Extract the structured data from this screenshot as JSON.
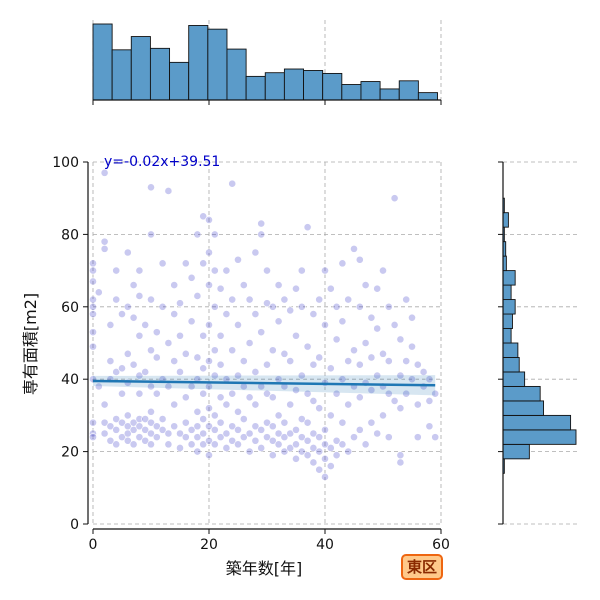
{
  "badge": {
    "label": "東区"
  },
  "chart_data": {
    "type": "scatter",
    "title": "",
    "xlabel": "築年数[年]",
    "ylabel": "専有面積[m2]",
    "xlim": [
      0,
      60
    ],
    "ylim": [
      0,
      100
    ],
    "xticks": [
      0,
      20,
      40,
      60
    ],
    "yticks": [
      0,
      20,
      40,
      60,
      80,
      100
    ],
    "grid": true,
    "point_color": "#3c3cc8",
    "bar_color": "#5b9bc9",
    "line_color": "#1f77b4",
    "regression": {
      "label": "y=-0.02x+39.51",
      "slope": -0.02,
      "intercept": 39.51,
      "x_range": [
        0,
        59
      ]
    },
    "marginal_x_hist": {
      "bin_edges": [
        0,
        3.3,
        6.6,
        9.9,
        13.2,
        16.5,
        19.8,
        23.1,
        26.4,
        29.7,
        33,
        36.3,
        39.6,
        42.9,
        46.2,
        49.5,
        52.8,
        56.1,
        59.4
      ],
      "counts": [
        103,
        68,
        86,
        70,
        51,
        101,
        96,
        69,
        32,
        37,
        42,
        40,
        36,
        21,
        25,
        15,
        26,
        10
      ]
    },
    "marginal_y_hist": {
      "bin_edges": [
        14,
        18,
        22,
        26,
        30,
        34,
        38,
        42,
        46,
        50,
        54,
        58,
        62,
        66,
        70,
        74,
        78,
        82,
        86,
        90
      ],
      "counts": [
        2,
        39,
        108,
        100,
        60,
        55,
        32,
        24,
        22,
        12,
        14,
        18,
        12,
        18,
        5,
        4,
        2,
        8,
        2
      ]
    },
    "points": [
      [
        0,
        25
      ],
      [
        0,
        28
      ],
      [
        0,
        40
      ],
      [
        0,
        49
      ],
      [
        0,
        53
      ],
      [
        0,
        58
      ],
      [
        0,
        60
      ],
      [
        0,
        62
      ],
      [
        0,
        67
      ],
      [
        0,
        70
      ],
      [
        0,
        72
      ],
      [
        0,
        24
      ],
      [
        1,
        38
      ],
      [
        1,
        64
      ],
      [
        2,
        76
      ],
      [
        2,
        78
      ],
      [
        2,
        97
      ],
      [
        2,
        28
      ],
      [
        2,
        25
      ],
      [
        2,
        33
      ],
      [
        3,
        23
      ],
      [
        3,
        27
      ],
      [
        3,
        40
      ],
      [
        3,
        55
      ],
      [
        3,
        45
      ],
      [
        4,
        22
      ],
      [
        4,
        26
      ],
      [
        4,
        29
      ],
      [
        4,
        42
      ],
      [
        4,
        62
      ],
      [
        4,
        70
      ],
      [
        5,
        24
      ],
      [
        5,
        28
      ],
      [
        5,
        36
      ],
      [
        5,
        43
      ],
      [
        5,
        58
      ],
      [
        6,
        23
      ],
      [
        6,
        25
      ],
      [
        6,
        27
      ],
      [
        6,
        30
      ],
      [
        6,
        39
      ],
      [
        6,
        47
      ],
      [
        6,
        60
      ],
      [
        6,
        75
      ],
      [
        7,
        22
      ],
      [
        7,
        26
      ],
      [
        7,
        28
      ],
      [
        7,
        44
      ],
      [
        7,
        57
      ],
      [
        7,
        66
      ],
      [
        8,
        24
      ],
      [
        8,
        27
      ],
      [
        8,
        29
      ],
      [
        8,
        36
      ],
      [
        8,
        41
      ],
      [
        8,
        52
      ],
      [
        8,
        63
      ],
      [
        8,
        70
      ],
      [
        9,
        23
      ],
      [
        9,
        26
      ],
      [
        9,
        29
      ],
      [
        9,
        42
      ],
      [
        9,
        55
      ],
      [
        10,
        22
      ],
      [
        10,
        25
      ],
      [
        10,
        28
      ],
      [
        10,
        31
      ],
      [
        10,
        38
      ],
      [
        10,
        48
      ],
      [
        10,
        62
      ],
      [
        10,
        80
      ],
      [
        10,
        93
      ],
      [
        11,
        24
      ],
      [
        11,
        27
      ],
      [
        11,
        36
      ],
      [
        11,
        46
      ],
      [
        11,
        53
      ],
      [
        12,
        26
      ],
      [
        12,
        29
      ],
      [
        12,
        40
      ],
      [
        12,
        60
      ],
      [
        12,
        72
      ],
      [
        13,
        22
      ],
      [
        13,
        25
      ],
      [
        13,
        38
      ],
      [
        13,
        50
      ],
      [
        13,
        92
      ],
      [
        14,
        27
      ],
      [
        14,
        33
      ],
      [
        14,
        45
      ],
      [
        14,
        58
      ],
      [
        14,
        66
      ],
      [
        15,
        21
      ],
      [
        15,
        25
      ],
      [
        15,
        42
      ],
      [
        15,
        52
      ],
      [
        15,
        61
      ],
      [
        16,
        24
      ],
      [
        16,
        28
      ],
      [
        16,
        35
      ],
      [
        16,
        47
      ],
      [
        16,
        72
      ],
      [
        17,
        22
      ],
      [
        17,
        26
      ],
      [
        17,
        38
      ],
      [
        17,
        56
      ],
      [
        17,
        68
      ],
      [
        18,
        20
      ],
      [
        18,
        24
      ],
      [
        18,
        27
      ],
      [
        18,
        31
      ],
      [
        18,
        40
      ],
      [
        18,
        46
      ],
      [
        18,
        63
      ],
      [
        18,
        80
      ],
      [
        19,
        22
      ],
      [
        19,
        25
      ],
      [
        19,
        29
      ],
      [
        19,
        36
      ],
      [
        19,
        43
      ],
      [
        19,
        52
      ],
      [
        19,
        72
      ],
      [
        19,
        85
      ],
      [
        20,
        19
      ],
      [
        20,
        23
      ],
      [
        20,
        27
      ],
      [
        20,
        32
      ],
      [
        20,
        38
      ],
      [
        20,
        45
      ],
      [
        20,
        55
      ],
      [
        20,
        66
      ],
      [
        20,
        75
      ],
      [
        20,
        84
      ],
      [
        21,
        22
      ],
      [
        21,
        26
      ],
      [
        21,
        30
      ],
      [
        21,
        41
      ],
      [
        21,
        48
      ],
      [
        21,
        60
      ],
      [
        21,
        70
      ],
      [
        21,
        80
      ],
      [
        22,
        24
      ],
      [
        22,
        28
      ],
      [
        22,
        35
      ],
      [
        22,
        44
      ],
      [
        22,
        52
      ],
      [
        22,
        65
      ],
      [
        23,
        21
      ],
      [
        23,
        25
      ],
      [
        23,
        33
      ],
      [
        23,
        40
      ],
      [
        23,
        58
      ],
      [
        23,
        70
      ],
      [
        24,
        23
      ],
      [
        24,
        27
      ],
      [
        24,
        36
      ],
      [
        24,
        48
      ],
      [
        24,
        62
      ],
      [
        24,
        94
      ],
      [
        25,
        22
      ],
      [
        25,
        26
      ],
      [
        25,
        31
      ],
      [
        25,
        41
      ],
      [
        25,
        55
      ],
      [
        25,
        73
      ],
      [
        26,
        24
      ],
      [
        26,
        29
      ],
      [
        26,
        38
      ],
      [
        26,
        45
      ],
      [
        26,
        66
      ],
      [
        27,
        20
      ],
      [
        27,
        25
      ],
      [
        27,
        35
      ],
      [
        27,
        50
      ],
      [
        27,
        62
      ],
      [
        28,
        23
      ],
      [
        28,
        27
      ],
      [
        28,
        33
      ],
      [
        28,
        42
      ],
      [
        28,
        58
      ],
      [
        28,
        75
      ],
      [
        29,
        21
      ],
      [
        29,
        26
      ],
      [
        29,
        38
      ],
      [
        29,
        53
      ],
      [
        29,
        80
      ],
      [
        29,
        83
      ],
      [
        30,
        24
      ],
      [
        30,
        28
      ],
      [
        30,
        36
      ],
      [
        30,
        44
      ],
      [
        30,
        61
      ],
      [
        30,
        70
      ],
      [
        31,
        19
      ],
      [
        31,
        23
      ],
      [
        31,
        27
      ],
      [
        31,
        35
      ],
      [
        31,
        48
      ],
      [
        31,
        60
      ],
      [
        32,
        22
      ],
      [
        32,
        25
      ],
      [
        32,
        30
      ],
      [
        32,
        40
      ],
      [
        32,
        56
      ],
      [
        32,
        66
      ],
      [
        33,
        20
      ],
      [
        33,
        24
      ],
      [
        33,
        28
      ],
      [
        33,
        38
      ],
      [
        33,
        47
      ],
      [
        33,
        62
      ],
      [
        34,
        21
      ],
      [
        34,
        25
      ],
      [
        34,
        33
      ],
      [
        34,
        45
      ],
      [
        34,
        59
      ],
      [
        35,
        18
      ],
      [
        35,
        22
      ],
      [
        35,
        26
      ],
      [
        35,
        37
      ],
      [
        35,
        52
      ],
      [
        35,
        65
      ],
      [
        36,
        20
      ],
      [
        36,
        24
      ],
      [
        36,
        29
      ],
      [
        36,
        41
      ],
      [
        36,
        60
      ],
      [
        36,
        70
      ],
      [
        37,
        19
      ],
      [
        37,
        23
      ],
      [
        37,
        28
      ],
      [
        37,
        36
      ],
      [
        37,
        49
      ],
      [
        37,
        82
      ],
      [
        38,
        17
      ],
      [
        38,
        21
      ],
      [
        38,
        25
      ],
      [
        38,
        34
      ],
      [
        38,
        44
      ],
      [
        38,
        58
      ],
      [
        39,
        15
      ],
      [
        39,
        20
      ],
      [
        39,
        24
      ],
      [
        39,
        32
      ],
      [
        39,
        46
      ],
      [
        39,
        62
      ],
      [
        40,
        13
      ],
      [
        40,
        18
      ],
      [
        40,
        22
      ],
      [
        40,
        26
      ],
      [
        40,
        39
      ],
      [
        40,
        55
      ],
      [
        40,
        70
      ],
      [
        41,
        16
      ],
      [
        41,
        21
      ],
      [
        41,
        30
      ],
      [
        41,
        43
      ],
      [
        41,
        65
      ],
      [
        42,
        19
      ],
      [
        42,
        23
      ],
      [
        42,
        36
      ],
      [
        42,
        51
      ],
      [
        42,
        60
      ],
      [
        43,
        22
      ],
      [
        43,
        28
      ],
      [
        43,
        40
      ],
      [
        43,
        56
      ],
      [
        43,
        72
      ],
      [
        44,
        20
      ],
      [
        44,
        33
      ],
      [
        44,
        45
      ],
      [
        44,
        62
      ],
      [
        45,
        24
      ],
      [
        45,
        38
      ],
      [
        45,
        48
      ],
      [
        45,
        76
      ],
      [
        46,
        26
      ],
      [
        46,
        35
      ],
      [
        46,
        44
      ],
      [
        46,
        60
      ],
      [
        46,
        73
      ],
      [
        47,
        22
      ],
      [
        47,
        39
      ],
      [
        47,
        50
      ],
      [
        47,
        66
      ],
      [
        48,
        28
      ],
      [
        48,
        37
      ],
      [
        48,
        46
      ],
      [
        48,
        57
      ],
      [
        49,
        25
      ],
      [
        49,
        41
      ],
      [
        49,
        54
      ],
      [
        49,
        65
      ],
      [
        50,
        30
      ],
      [
        50,
        38
      ],
      [
        50,
        47
      ],
      [
        50,
        70
      ],
      [
        51,
        24
      ],
      [
        51,
        36
      ],
      [
        51,
        45
      ],
      [
        51,
        60
      ],
      [
        52,
        34
      ],
      [
        52,
        90
      ],
      [
        52,
        55
      ],
      [
        53,
        17
      ],
      [
        53,
        19
      ],
      [
        53,
        32
      ],
      [
        53,
        41
      ],
      [
        53,
        51
      ],
      [
        54,
        36
      ],
      [
        54,
        45
      ],
      [
        54,
        62
      ],
      [
        55,
        40
      ],
      [
        55,
        49
      ],
      [
        55,
        57
      ],
      [
        56,
        24
      ],
      [
        56,
        33
      ],
      [
        56,
        44
      ],
      [
        57,
        38
      ],
      [
        57,
        42
      ],
      [
        58,
        27
      ],
      [
        58,
        34
      ],
      [
        58,
        40
      ],
      [
        59,
        24
      ],
      [
        59,
        36
      ]
    ]
  }
}
